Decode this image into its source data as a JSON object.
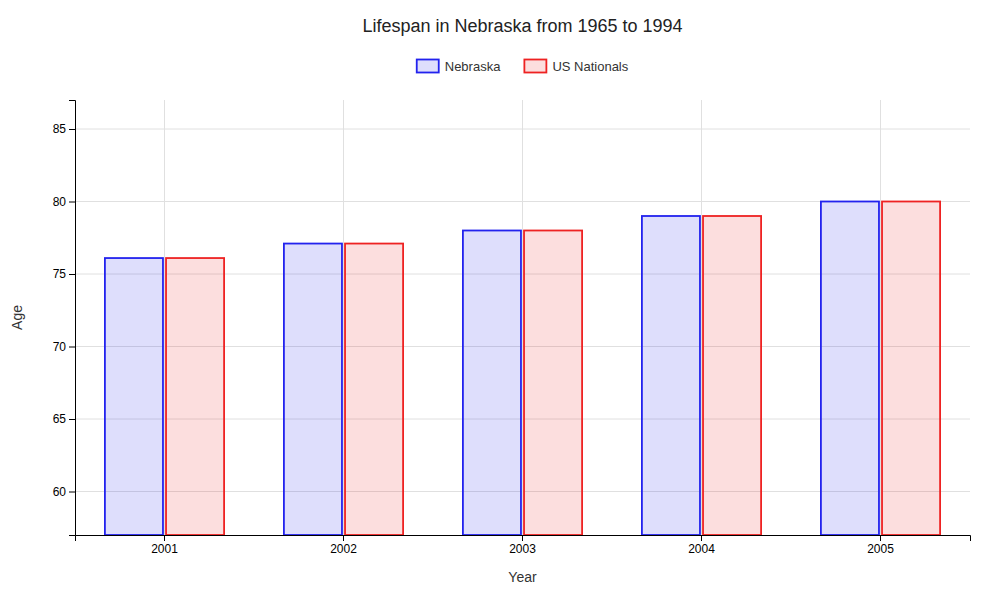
{
  "chart_data": {
    "type": "bar",
    "title": "Lifespan in Nebraska from 1965 to 1994",
    "xlabel": "Year",
    "ylabel": "Age",
    "categories": [
      "2001",
      "2002",
      "2003",
      "2004",
      "2005"
    ],
    "series": [
      {
        "name": "Nebraska",
        "color": "#2222ee",
        "values": [
          76.1,
          77.1,
          78.0,
          79.0,
          80.0
        ]
      },
      {
        "name": "US Nationals",
        "color": "#ee2222",
        "values": [
          76.1,
          77.1,
          78.0,
          79.0,
          80.0
        ]
      }
    ],
    "ylim": [
      57,
      87
    ],
    "yticks": [
      60,
      65,
      70,
      75,
      80,
      85
    ],
    "grid": true,
    "legend": "top"
  }
}
